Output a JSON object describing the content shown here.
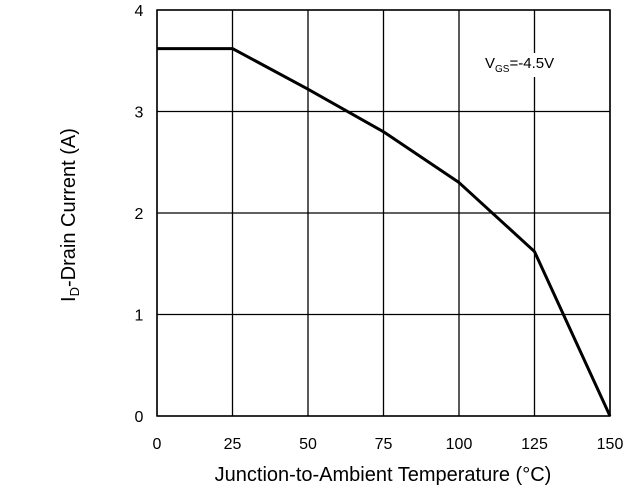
{
  "chart_data": {
    "type": "line",
    "title": "",
    "xlabel": "Junction-to-Ambient Temperature (°C)",
    "ylabel": {
      "main": "I",
      "sub": "D",
      "rest": "-Drain Current (A)"
    },
    "xlim": [
      0,
      150
    ],
    "ylim": [
      0,
      4
    ],
    "x_ticks": [
      0,
      25,
      50,
      75,
      100,
      125,
      150
    ],
    "y_ticks": [
      0,
      1,
      2,
      3,
      4
    ],
    "grid": true,
    "legend": "none",
    "annotation": {
      "main": "V",
      "sub": "GS",
      "rest": "=-4.5V"
    },
    "series": [
      {
        "x": [
          0,
          25,
          50,
          75,
          100,
          125,
          150
        ],
        "y": [
          3.62,
          3.62,
          3.22,
          2.8,
          2.3,
          1.62,
          0
        ]
      }
    ],
    "colors": {
      "line": "#000000",
      "grid": "#000000"
    }
  }
}
